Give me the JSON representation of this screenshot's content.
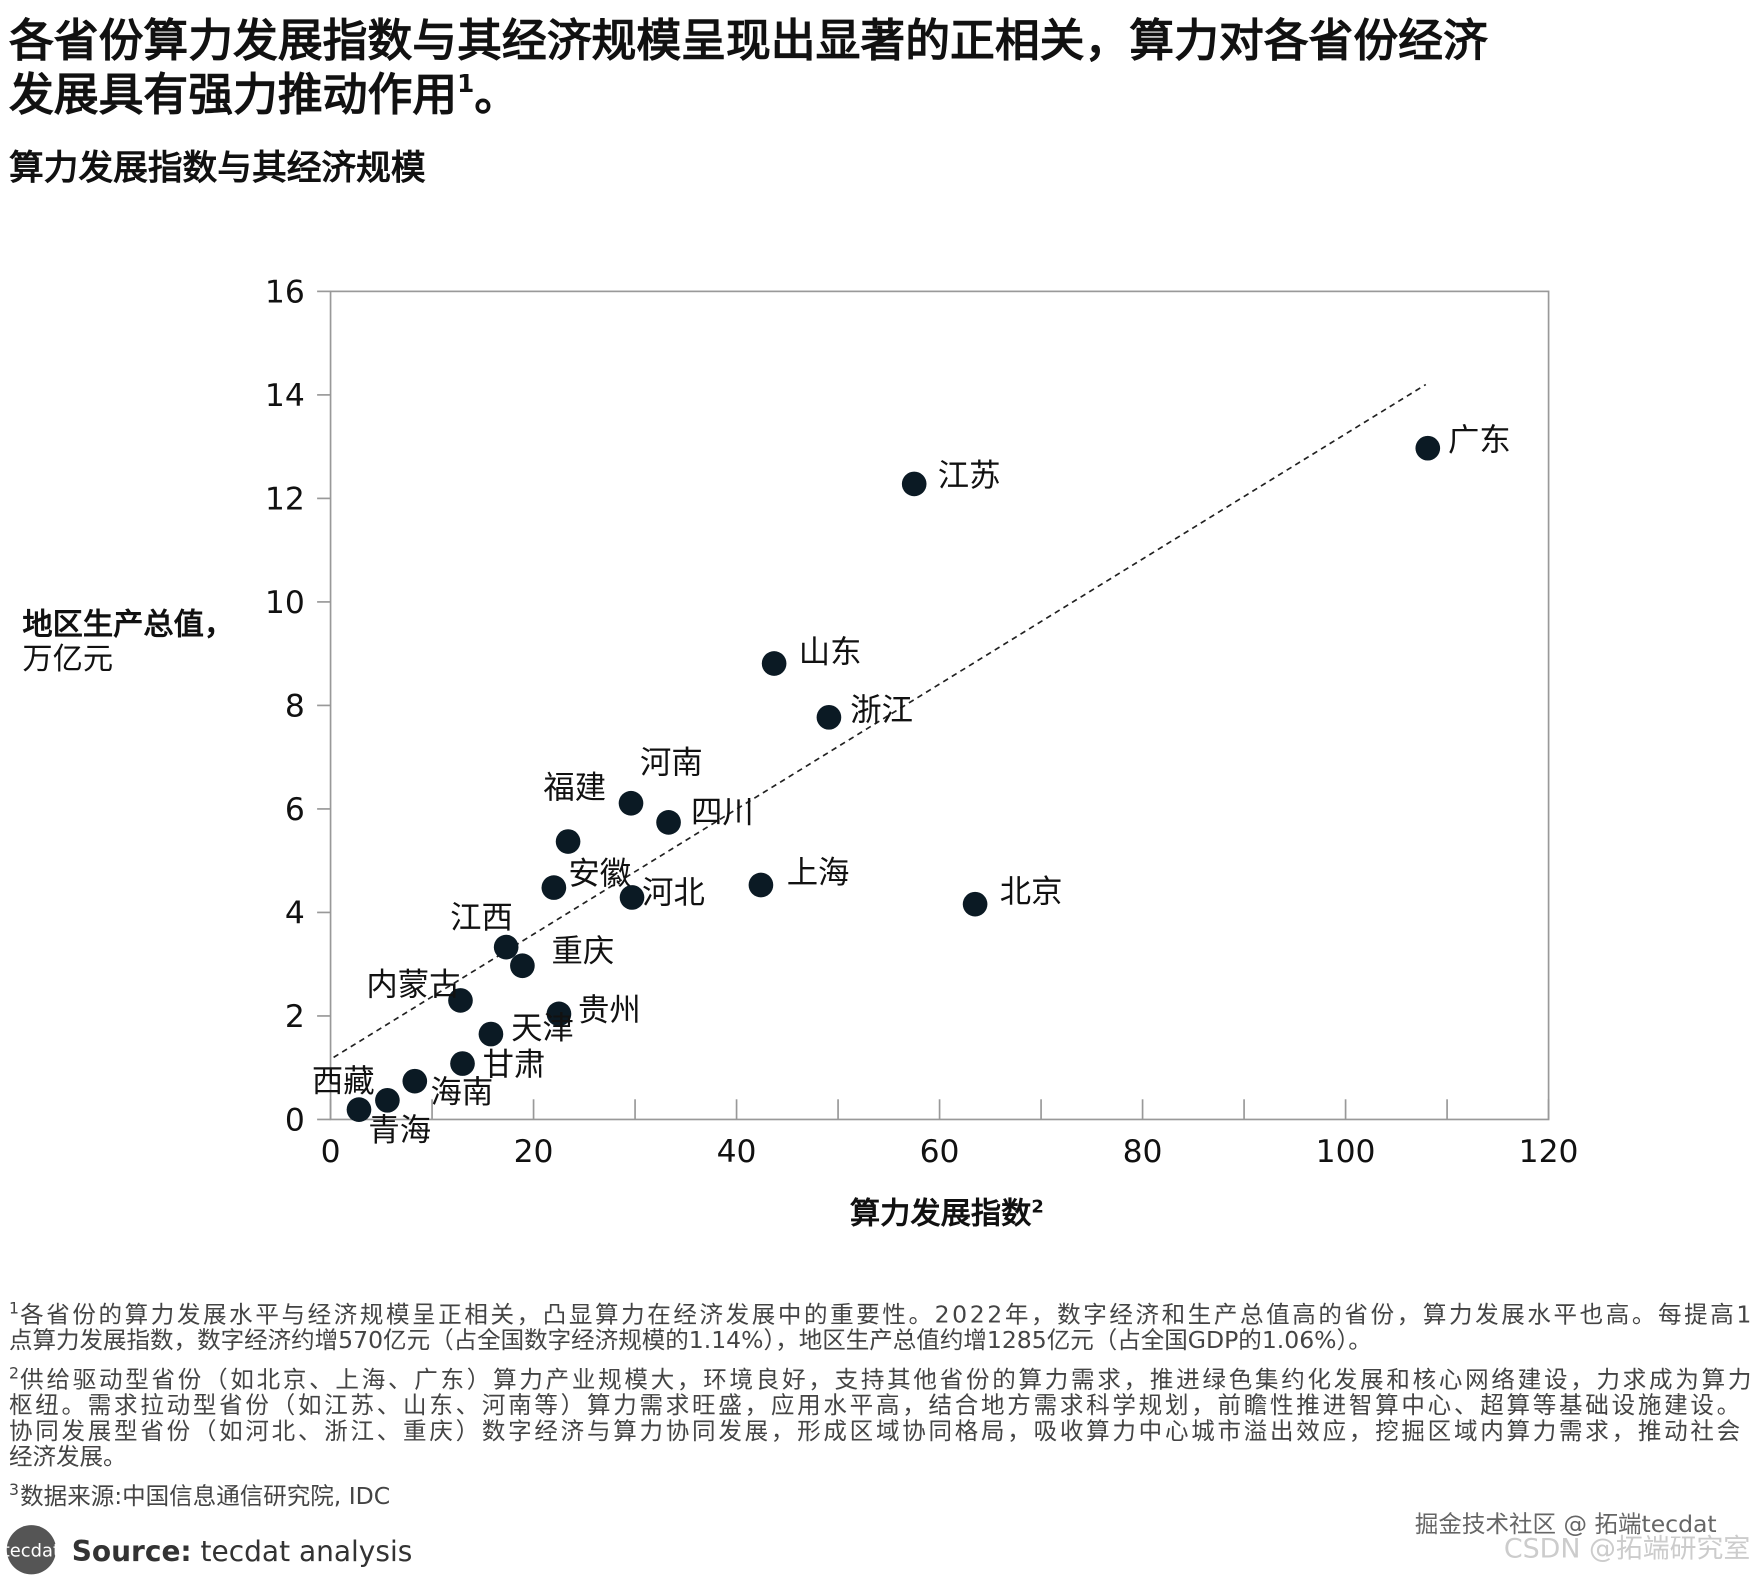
{
  "chart_data": {
    "type": "scatter",
    "title": {
      "line1": "各省份算力发展指数与其经济规模呈现出显著的正相关，算力对各省份经济",
      "line2": "发展具有强力推动作用",
      "marker": "1",
      "end": "。"
    },
    "subtitle": "算力发展指数与其经济规模",
    "x_label": {
      "text": "算力发展指数",
      "marker": "2"
    },
    "y_label": [
      "地区生产总值，",
      "万亿元"
    ],
    "color": "#0b1a24",
    "labels": [
      "广东",
      "江苏",
      "山东",
      "浙江",
      "河南",
      "四川",
      "福建",
      "安徽",
      "河北",
      "上海",
      "北京",
      "江西",
      "重庆",
      "内蒙古",
      "贵州",
      "天津",
      "甘肃",
      "海南",
      "青海",
      "西藏"
    ],
    "x": [
      108.1,
      57.5,
      43.7,
      49.1,
      29.6,
      33.3,
      23.4,
      22.0,
      29.7,
      42.4,
      63.5,
      17.3,
      18.9,
      12.8,
      22.5,
      15.8,
      13.0,
      8.3,
      5.6,
      2.8
    ],
    "y": [
      12.97,
      12.28,
      8.81,
      7.77,
      6.11,
      5.74,
      5.37,
      4.48,
      4.29,
      4.53,
      4.16,
      3.33,
      2.97,
      2.3,
      2.04,
      1.65,
      1.08,
      0.74,
      0.37,
      0.19
    ],
    "trendline": {
      "x": [
        0.3,
        107.9
      ],
      "y": [
        1.2,
        14.2
      ]
    },
    "xlim": [
      0,
      120
    ],
    "ylim": [
      0,
      16
    ],
    "xticks": [
      0,
      20,
      40,
      60,
      80,
      100,
      120
    ],
    "xminor_ticks": [
      10,
      30,
      50,
      70,
      90,
      110
    ],
    "yticks": [
      0,
      2,
      4,
      6,
      8,
      10,
      12,
      14,
      16
    ]
  },
  "footnotes": [
    {
      "marker": "1",
      "lines": [
        "各省份的算力发展水平与经济规模呈正相关，凸显算力在经济发展中的重要性。2022年，数字经济和生产总值高的省份，算力发展水平也高。每提高1",
        "点算力发展指数，数字经济约增570亿元（占全国数字经济规模的1.14%），地区生产总值约增1285亿元（占全国GDP的1.06%）。"
      ]
    },
    {
      "marker": "2",
      "lines": [
        "供给驱动型省份（如北京、上海、广东）算力产业规模大，环境良好，支持其他省份的算力需求，推进绿色集约化发展和核心网络建设，力求成为算力",
        "枢纽。需求拉动型省份（如江苏、山东、河南等）算力需求旺盛，应用水平高，结合地方需求科学规划，前瞻性推进智算中心、超算等基础设施建设。",
        "协同发展型省份（如河北、浙江、重庆）数字经济与算力协同发展，形成区域协同格局，吸收算力中心城市溢出效应，挖掘区域内算力需求，推动社会",
        "经济发展。"
      ]
    },
    {
      "marker": "3",
      "lines": [
        "数据来源:中国信息通信研究院, IDC"
      ]
    }
  ],
  "source": {
    "logo": "tecdat",
    "label": "Source:",
    "text": "tecdat analysis"
  },
  "watermarks": [
    "掘金技术社区 @ 拓端tecdat",
    "CSDN @拓端研究室"
  ]
}
